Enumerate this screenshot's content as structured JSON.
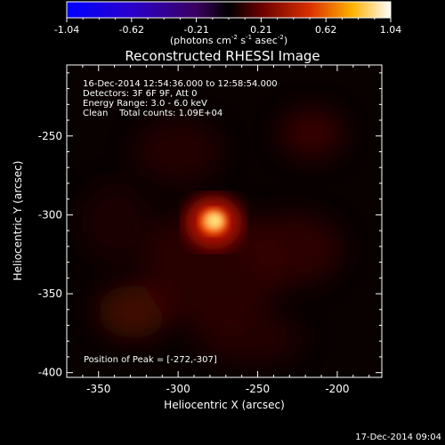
{
  "colorbar": {
    "ticks": [
      "-1.04",
      "-0.62",
      "-0.21",
      "0.21",
      "0.62",
      "1.04"
    ],
    "units_prefix": "(photons cm",
    "units_exp1": "-2",
    "units_mid": " s",
    "units_exp2": "-1",
    "units_mid2": " asec",
    "units_exp3": "-2",
    "units_suffix": ")"
  },
  "title": "Reconstructed RHESSI Image",
  "info": {
    "line1": "16-Dec-2014 12:54:36.000 to 12:58:54.000",
    "line2": "Detectors: 3F 6F 9F, Att 0",
    "line3": "Energy Range: 3.0 - 6.0 keV",
    "line4": "Clean    Total counts: 1.09E+04"
  },
  "peak_label": "Position of Peak = [-272,-307]",
  "peak": {
    "x": -272,
    "y": -307
  },
  "axes": {
    "xlabel": "Heliocentric X (arcsec)",
    "ylabel": "Heliocentric Y (arcsec)",
    "xlim": [
      -370,
      -172
    ],
    "ylim": [
      -403,
      -205
    ],
    "xticks": [
      {
        "value": -350,
        "label": "-350"
      },
      {
        "value": -300,
        "label": "-300"
      },
      {
        "value": -250,
        "label": "-250"
      },
      {
        "value": -200,
        "label": "-200"
      }
    ],
    "yticks": [
      {
        "value": -250,
        "label": "-250"
      },
      {
        "value": -300,
        "label": "-300"
      },
      {
        "value": -350,
        "label": "-350"
      },
      {
        "value": -400,
        "label": "-400"
      }
    ]
  },
  "timestamp": "17-Dec-2014 09:04"
}
